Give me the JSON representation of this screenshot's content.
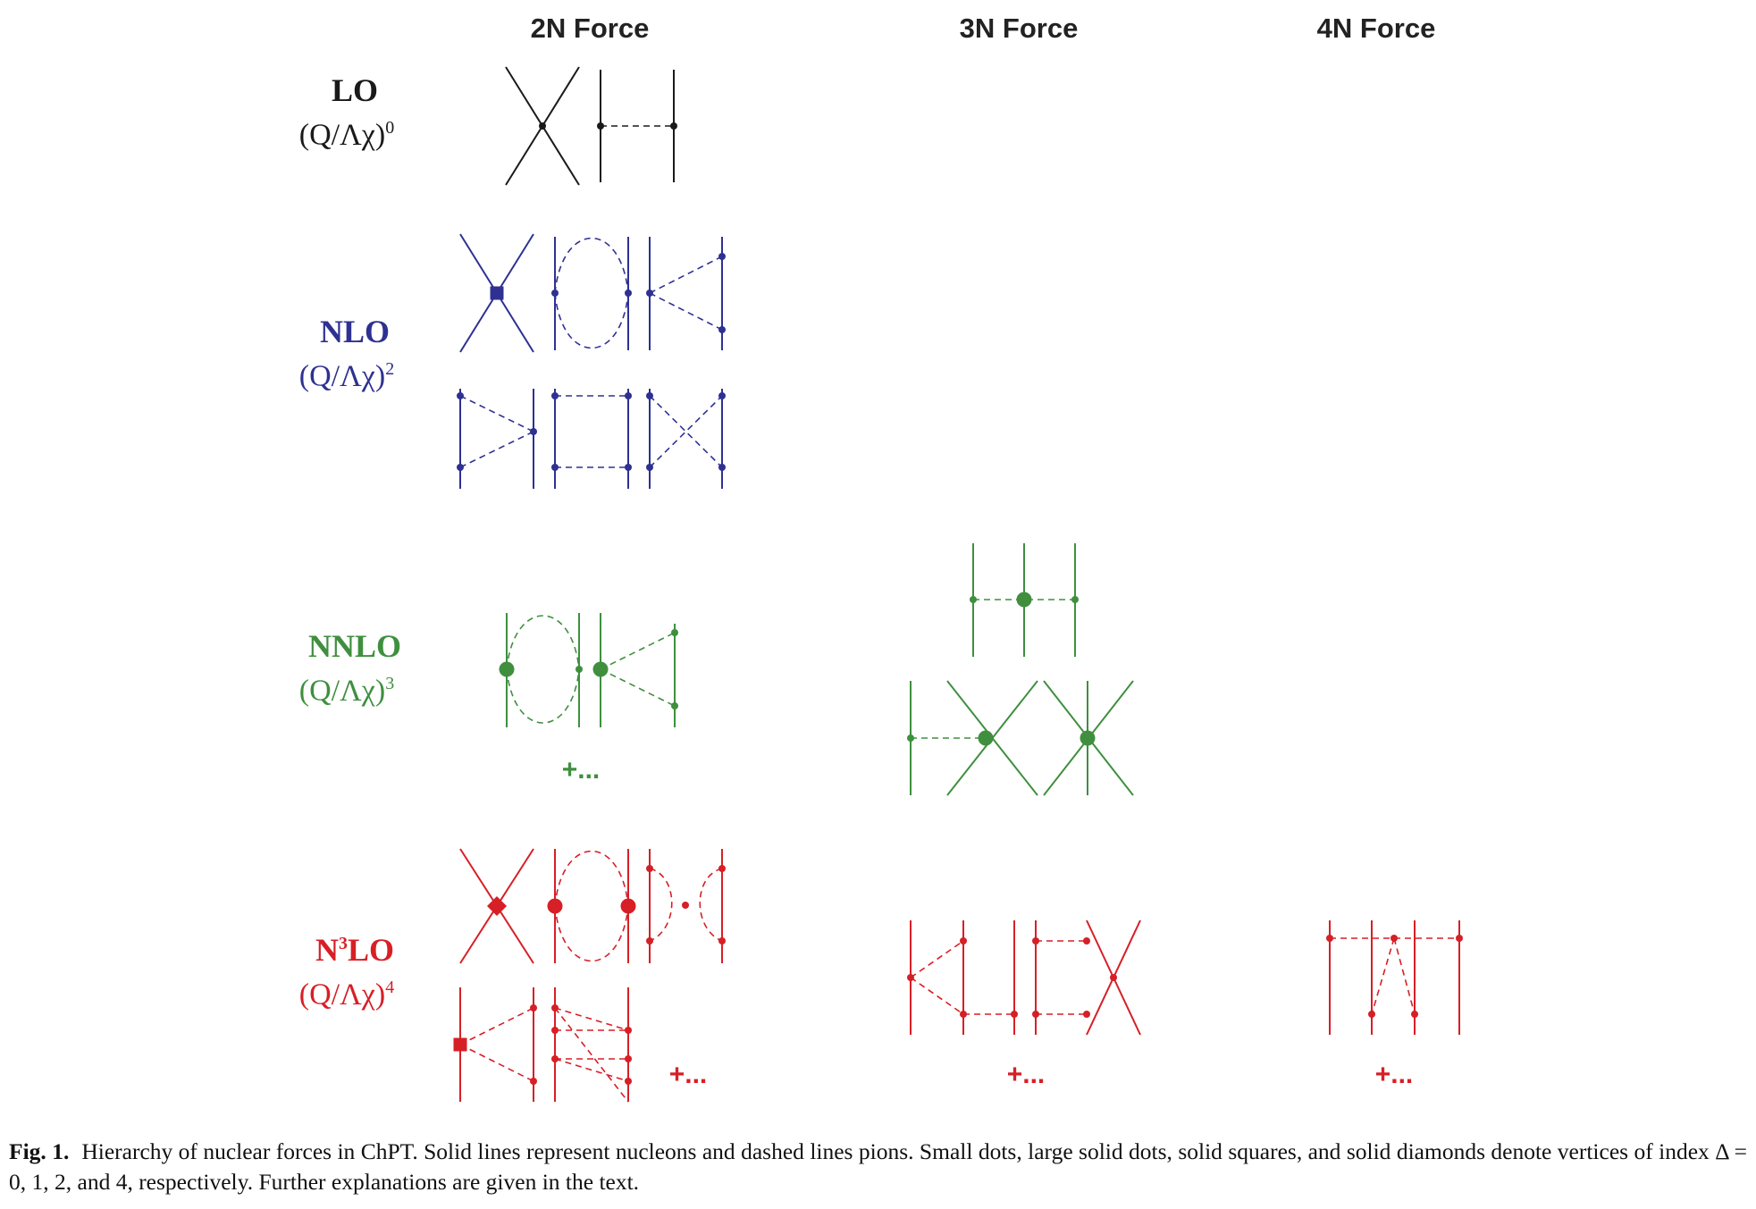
{
  "columns": {
    "two_n": "2N Force",
    "three_n": "3N Force",
    "four_n": "4N Force"
  },
  "orders": {
    "lo": {
      "label": "LO",
      "scale": "(Q/Λχ)",
      "power": "0",
      "color": "#1a1a1a"
    },
    "nlo": {
      "label": "NLO",
      "scale": "(Q/Λχ)",
      "power": "2",
      "color": "#2e3192"
    },
    "nnlo": {
      "label": "NNLO",
      "scale": "(Q/Λχ)",
      "power": "3",
      "color": "#3f8f3f"
    },
    "n3lo": {
      "label_n": "N",
      "label_sup": "3",
      "label_rest": "LO",
      "scale": "(Q/Λχ)",
      "power": "4",
      "color": "#d71f26"
    }
  },
  "more": "+...",
  "caption": {
    "label": "Fig. 1.",
    "text": "Hierarchy of nuclear forces in ChPT. Solid lines represent nucleons and dashed lines pions. Small dots, large solid dots, solid squares, and solid diamonds denote vertices of index Δ = 0, 1, 2, and 4, respectively. Further explanations are given in the text."
  }
}
